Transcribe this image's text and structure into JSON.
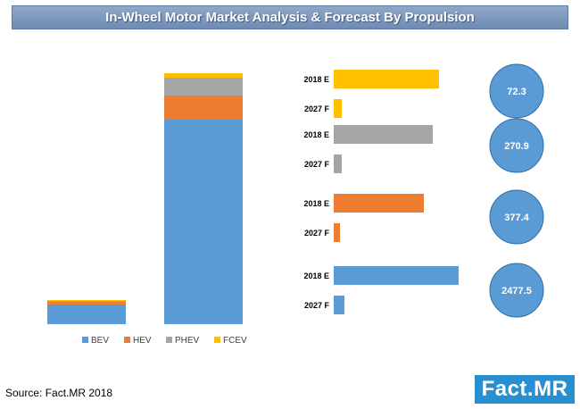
{
  "header": {
    "title": "In-Wheel Motor Market Analysis & Forecast By Propulsion"
  },
  "footer": {
    "source": "Source: Fact.MR  2018",
    "logo_text": "Fact.MR"
  },
  "colors": {
    "BEV": "#5b9bd5",
    "HEV": "#ed7d31",
    "PHEV": "#a5a5a5",
    "FCEV": "#ffc000"
  },
  "chart_data": [
    {
      "type": "bar",
      "stacked": true,
      "categories": [
        "2018 E",
        "2027 F"
      ],
      "series": [
        {
          "name": "BEV",
          "values": [
            22,
            229
          ]
        },
        {
          "name": "HEV",
          "values": [
            3,
            27
          ]
        },
        {
          "name": "PHEV",
          "values": [
            1,
            20
          ]
        },
        {
          "name": "FCEV",
          "values": [
            1,
            5
          ]
        }
      ],
      "ylim": [
        0,
        300
      ],
      "grid": false,
      "legend": "bottom",
      "axis_labels_shown": false
    },
    {
      "type": "bar",
      "orientation": "horizontal",
      "groups": [
        {
          "series": "FCEV",
          "bars": [
            {
              "label": "2018 E",
              "value": 118
            },
            {
              "label": "2027 F",
              "value": 9
            }
          ],
          "annotation": "72.3"
        },
        {
          "series": "PHEV",
          "bars": [
            {
              "label": "2018 E",
              "value": 111
            },
            {
              "label": "2027 F",
              "value": 9
            }
          ],
          "annotation": "270.9"
        },
        {
          "series": "HEV",
          "bars": [
            {
              "label": "2018 E",
              "value": 101
            },
            {
              "label": "2027 F",
              "value": 7
            }
          ],
          "annotation": "377.4"
        },
        {
          "series": "BEV",
          "bars": [
            {
              "label": "2018 E",
              "value": 140
            },
            {
              "label": "2027 F",
              "value": 12
            }
          ],
          "annotation": "2477.5"
        }
      ],
      "xlim": [
        0,
        150
      ],
      "grid": false
    }
  ]
}
